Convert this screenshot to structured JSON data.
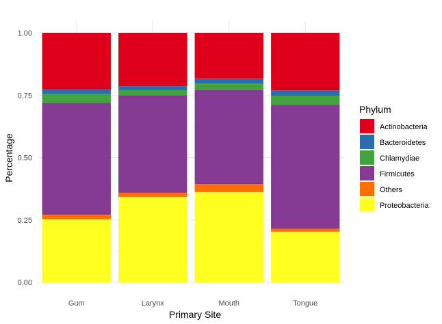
{
  "chart_data": {
    "type": "bar",
    "stacked": true,
    "xlabel": "Primary Site",
    "ylabel": "Percentage",
    "ylim": [
      0,
      1
    ],
    "yticks": [
      "0.00",
      "0.25",
      "0.50",
      "0.75",
      "1.00"
    ],
    "categories": [
      "Gum",
      "Larynx",
      "Mouth",
      "Tongue"
    ],
    "legend": {
      "title": "Phylum",
      "position": "right"
    },
    "grid": true,
    "series": [
      {
        "name": "Proteobacteria",
        "color": "#FFFF22",
        "values": [
          0.253,
          0.342,
          0.362,
          0.203
        ]
      },
      {
        "name": "Others",
        "color": "#FF6E00",
        "values": [
          0.018,
          0.017,
          0.032,
          0.012
        ]
      },
      {
        "name": "Firmicutes",
        "color": "#843A92",
        "values": [
          0.448,
          0.391,
          0.377,
          0.496
        ]
      },
      {
        "name": "Chlamydiae",
        "color": "#43A33E",
        "values": [
          0.036,
          0.02,
          0.026,
          0.037
        ]
      },
      {
        "name": "Bacteroidetes",
        "color": "#2B6EB0",
        "values": [
          0.019,
          0.016,
          0.02,
          0.021
        ]
      },
      {
        "name": "Actinobacteria",
        "color": "#DE0019",
        "values": [
          0.226,
          0.214,
          0.183,
          0.231
        ]
      }
    ],
    "legend_order": [
      "Actinobacteria",
      "Bacteroidetes",
      "Chlamydiae",
      "Firmicutes",
      "Others",
      "Proteobacteria"
    ]
  }
}
